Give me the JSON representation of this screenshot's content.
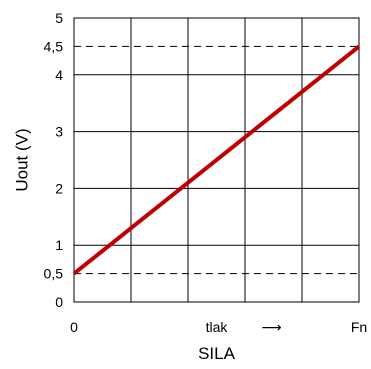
{
  "chart_data": {
    "type": "line",
    "xlabel": "SILA",
    "ylabel": "Uout (V)",
    "xlim": [
      0,
      1
    ],
    "ylim": [
      0,
      5
    ],
    "x_ticks": [
      {
        "value": 0,
        "label": "0"
      },
      {
        "value": 0.5,
        "label": "tlak"
      },
      {
        "value": 1,
        "label": "Fn"
      }
    ],
    "x_arrow": "⟶",
    "y_ticks": [
      {
        "value": 0,
        "label": "0"
      },
      {
        "value": 0.5,
        "label": "0,5"
      },
      {
        "value": 1,
        "label": "1"
      },
      {
        "value": 2,
        "label": "2"
      },
      {
        "value": 3,
        "label": "3"
      },
      {
        "value": 4,
        "label": "4"
      },
      {
        "value": 4.5,
        "label": "4,5"
      },
      {
        "value": 5,
        "label": "5"
      }
    ],
    "grid": true,
    "reference_lines": [
      {
        "axis": "y",
        "value": 0.5,
        "style": "dashed"
      },
      {
        "axis": "y",
        "value": 4.5,
        "style": "dashed"
      }
    ],
    "series": [
      {
        "x": [
          0,
          1
        ],
        "y": [
          0.5,
          4.5
        ],
        "color": "#c00000"
      }
    ]
  }
}
